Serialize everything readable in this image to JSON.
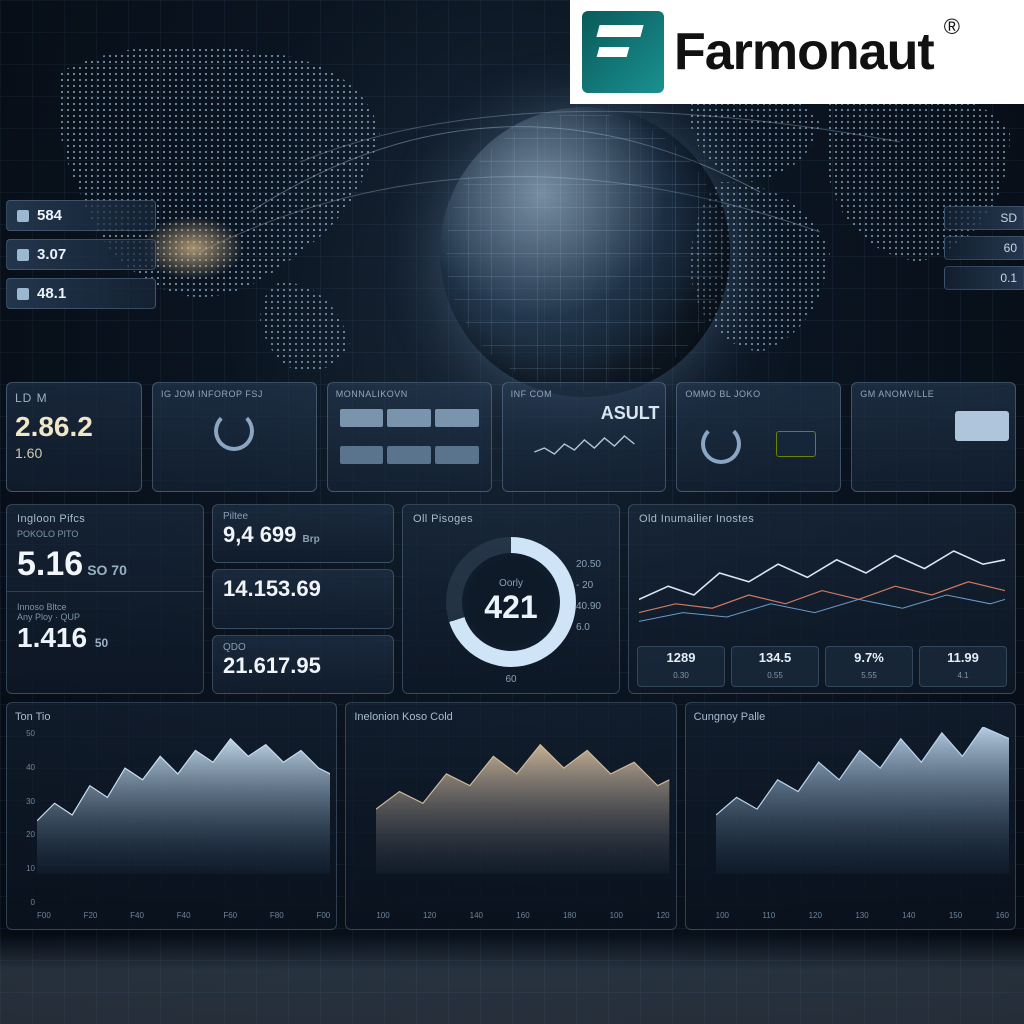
{
  "brand": {
    "name": "Farmonaut",
    "registered": "®",
    "logo_bg": "#158080"
  },
  "colors": {
    "bg_center": "#1a2838",
    "bg_edge": "#050a12",
    "grid": "#6488b4",
    "panel_border": "#8caac8",
    "text_primary": "#eaf2fa",
    "text_secondary": "#8aa0b4",
    "accent_warm": "#f0e6c8"
  },
  "side_badges_left": [
    {
      "value": "584"
    },
    {
      "value": "3.07"
    },
    {
      "value": "48.1"
    }
  ],
  "side_badges_right": [
    {
      "value": "SD"
    },
    {
      "value": "60"
    },
    {
      "value": "0.1"
    }
  ],
  "ldm": {
    "title": "LD M",
    "value": "2.86.2",
    "sub": "1.60"
  },
  "info_cards": [
    {
      "header": "IG JOM INFOROP FSJ",
      "kind": "icons"
    },
    {
      "header": "MONNALIKOVN",
      "kind": "grid"
    },
    {
      "header": "INF COM",
      "kind": "sparkline",
      "accent": "ASULT"
    },
    {
      "header": "OMMO BL JOKO",
      "kind": "gauge"
    },
    {
      "header": "GM ANOMVILLE",
      "kind": "minimap"
    }
  ],
  "prices_panel": {
    "header": "Ingloon Pifcs",
    "sub": "POKOLO PITO",
    "main_value": "5.16",
    "main_unit": "SO 70",
    "divider_label": "Innoso Bltce",
    "second_sub": "Any Ploy · QUP",
    "second_value": "1.416",
    "second_unit": "50"
  },
  "stacked_prices": {
    "header": "Piltee",
    "cells": [
      {
        "label": "",
        "value": "9,4 699",
        "suffix": "Brp"
      },
      {
        "label": "",
        "value": "14.153.69"
      },
      {
        "label": "QDO",
        "value": "21.617.95"
      }
    ]
  },
  "gauge_panel": {
    "header": "Oll Pisoges",
    "center_label": "Oorly",
    "center_value": "421",
    "fill_pct": 70,
    "donut_fill": "#cfe4f6",
    "donut_track": "#3c5064",
    "side_ticks": [
      "20.50",
      "- 20",
      "40.90",
      "6.0"
    ],
    "bottom_val": "60"
  },
  "lines_panel": {
    "header": "Old Inumailier Inostes",
    "type": "line",
    "xlim": [
      0,
      100
    ],
    "ylim": [
      0,
      60
    ],
    "series": [
      {
        "color": "#d8e6f2",
        "width": 1.6,
        "points": [
          [
            0,
            28
          ],
          [
            8,
            34
          ],
          [
            15,
            30
          ],
          [
            22,
            40
          ],
          [
            30,
            36
          ],
          [
            38,
            44
          ],
          [
            46,
            38
          ],
          [
            54,
            46
          ],
          [
            62,
            40
          ],
          [
            70,
            48
          ],
          [
            78,
            42
          ],
          [
            86,
            50
          ],
          [
            94,
            44
          ],
          [
            100,
            46
          ]
        ]
      },
      {
        "color": "#d07a60",
        "width": 1.2,
        "points": [
          [
            0,
            22
          ],
          [
            10,
            26
          ],
          [
            20,
            24
          ],
          [
            30,
            30
          ],
          [
            40,
            26
          ],
          [
            50,
            32
          ],
          [
            60,
            28
          ],
          [
            70,
            34
          ],
          [
            80,
            30
          ],
          [
            90,
            36
          ],
          [
            100,
            32
          ]
        ]
      },
      {
        "color": "#6a9ac8",
        "width": 1.0,
        "points": [
          [
            0,
            18
          ],
          [
            12,
            22
          ],
          [
            24,
            20
          ],
          [
            36,
            26
          ],
          [
            48,
            22
          ],
          [
            60,
            28
          ],
          [
            72,
            24
          ],
          [
            84,
            30
          ],
          [
            96,
            26
          ],
          [
            100,
            28
          ]
        ]
      }
    ],
    "stats": [
      {
        "value": "1289",
        "sub": "0.30"
      },
      {
        "value": "134.5",
        "sub": "0.55"
      },
      {
        "value": "9.7%",
        "sub": "5.55"
      },
      {
        "value": "11.99",
        "sub": "4.1"
      }
    ]
  },
  "area_charts": [
    {
      "header": "Ton Tio",
      "type": "area",
      "color_top": "#c8ddf0",
      "color_bottom": "#2a4662",
      "ylim": [
        0,
        50
      ],
      "yticks": [
        "50",
        "40",
        "30",
        "20",
        "10",
        "0"
      ],
      "xticks": [
        "F00",
        "F20",
        "F40",
        "F40",
        "F60",
        "F80",
        "F00"
      ],
      "points": [
        [
          0,
          18
        ],
        [
          6,
          24
        ],
        [
          12,
          20
        ],
        [
          18,
          30
        ],
        [
          24,
          26
        ],
        [
          30,
          36
        ],
        [
          36,
          32
        ],
        [
          42,
          40
        ],
        [
          48,
          34
        ],
        [
          54,
          42
        ],
        [
          60,
          38
        ],
        [
          66,
          46
        ],
        [
          72,
          40
        ],
        [
          78,
          44
        ],
        [
          84,
          38
        ],
        [
          90,
          42
        ],
        [
          96,
          36
        ],
        [
          100,
          34
        ]
      ]
    },
    {
      "header": "Inelonion Koso Cold",
      "type": "area",
      "color_top": "#d0b89a",
      "color_bottom": "#3a4456",
      "ylim": [
        0,
        50
      ],
      "yticks": [
        "",
        "",
        "",
        "",
        "",
        ""
      ],
      "xticks": [
        "100",
        "120",
        "140",
        "160",
        "180",
        "100",
        "120"
      ],
      "points": [
        [
          0,
          22
        ],
        [
          8,
          28
        ],
        [
          16,
          24
        ],
        [
          24,
          34
        ],
        [
          32,
          30
        ],
        [
          40,
          40
        ],
        [
          48,
          34
        ],
        [
          56,
          44
        ],
        [
          64,
          36
        ],
        [
          72,
          42
        ],
        [
          80,
          34
        ],
        [
          88,
          38
        ],
        [
          96,
          30
        ],
        [
          100,
          32
        ]
      ]
    },
    {
      "header": "Cungnoy Palle",
      "type": "area",
      "color_top": "#bcd4ea",
      "color_bottom": "#24405c",
      "ylim": [
        0,
        50
      ],
      "yticks": [
        "",
        "",
        "",
        "",
        "",
        ""
      ],
      "xticks": [
        "100",
        "110",
        "120",
        "130",
        "140",
        "150",
        "160"
      ],
      "points": [
        [
          0,
          20
        ],
        [
          7,
          26
        ],
        [
          14,
          22
        ],
        [
          21,
          32
        ],
        [
          28,
          28
        ],
        [
          35,
          38
        ],
        [
          42,
          32
        ],
        [
          49,
          42
        ],
        [
          56,
          36
        ],
        [
          63,
          46
        ],
        [
          70,
          38
        ],
        [
          77,
          48
        ],
        [
          84,
          40
        ],
        [
          91,
          50
        ],
        [
          100,
          46
        ]
      ]
    }
  ]
}
